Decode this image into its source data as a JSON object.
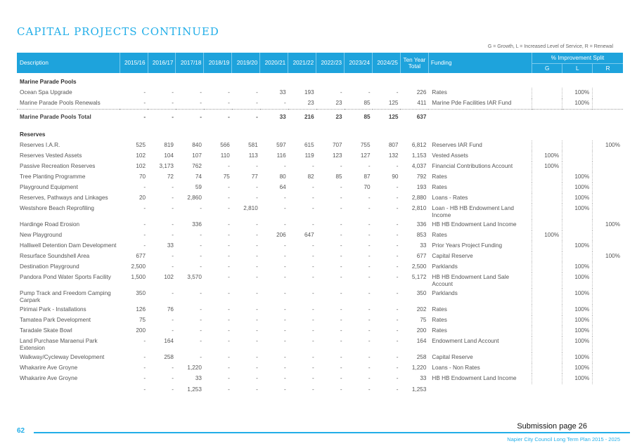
{
  "page": {
    "title": "CAPITAL PROJECTS CONTINUED",
    "legend": "G = Growth, L = Increased Level of Service, R = Renewal",
    "page_number": "62",
    "submission": "Submission page 26",
    "footer_brand": "Napier City Council Long Term Plan 2015 - 2025"
  },
  "headers": {
    "description": "Description",
    "years": [
      "2015/16",
      "2016/17",
      "2017/18",
      "2018/19",
      "2019/20",
      "2020/21",
      "2021/22",
      "2022/23",
      "2023/24",
      "2024/25"
    ],
    "ten_year_total": "Ten Year Total",
    "funding": "Funding",
    "improvement_split": "% Improvement Split",
    "split_cols": [
      "G",
      "L",
      "R"
    ]
  },
  "rows": [
    {
      "type": "group",
      "description": "Marine Parade Pools"
    },
    {
      "type": "item",
      "description": "Ocean Spa Upgrade",
      "values": [
        "-",
        "-",
        "-",
        "-",
        "-",
        "33",
        "193",
        "-",
        "-",
        "-"
      ],
      "total": "226",
      "funding": "Rates",
      "g": "",
      "l": "100%",
      "r": ""
    },
    {
      "type": "item",
      "description": "Marine Parade Pools Renewals",
      "values": [
        "-",
        "-",
        "-",
        "-",
        "-",
        "-",
        "23",
        "23",
        "85",
        "125"
      ],
      "total": "411",
      "funding": "Marine Pde Facilities IAR Fund",
      "g": "",
      "l": "100%",
      "r": "",
      "extra": "155"
    },
    {
      "type": "total",
      "description": "Marine Parade Pools Total",
      "values": [
        "-",
        "-",
        "-",
        "-",
        "-",
        "33",
        "216",
        "23",
        "85",
        "125"
      ],
      "total": "637",
      "extra": "155"
    },
    {
      "type": "group",
      "description": "Reserves"
    },
    {
      "type": "item",
      "description": "Reserves I.A.R.",
      "values": [
        "525",
        "819",
        "840",
        "566",
        "581",
        "597",
        "615",
        "707",
        "755",
        "807"
      ],
      "total": "6,812",
      "funding": "Reserves IAR Fund",
      "g": "",
      "l": "",
      "r": "100%"
    },
    {
      "type": "item",
      "description": "Reserves Vested Assets",
      "values": [
        "102",
        "104",
        "107",
        "110",
        "113",
        "116",
        "119",
        "123",
        "127",
        "132"
      ],
      "total": "1,153",
      "funding": "Vested Assets",
      "g": "100%",
      "l": "",
      "r": ""
    },
    {
      "type": "item",
      "description": "Passive Recreation Reserves",
      "values": [
        "102",
        "3,173",
        "762",
        "-",
        "-",
        "-",
        "-",
        "-",
        "-",
        "-"
      ],
      "total": "4,037",
      "funding": "Financial Contributions Account",
      "g": "100%",
      "l": "",
      "r": ""
    },
    {
      "type": "item",
      "description": "Tree Planting Programme",
      "values": [
        "70",
        "72",
        "74",
        "75",
        "77",
        "80",
        "82",
        "85",
        "87",
        "90"
      ],
      "total": "792",
      "funding": "Rates",
      "g": "",
      "l": "100%",
      "r": ""
    },
    {
      "type": "item",
      "description": "Playground Equipment",
      "values": [
        "-",
        "-",
        "59",
        "-",
        "-",
        "64",
        "-",
        "-",
        "70",
        "-"
      ],
      "total": "193",
      "funding": "Rates",
      "g": "",
      "l": "100%",
      "r": ""
    },
    {
      "type": "item",
      "description": "Reserves, Pathways and Linkages",
      "values": [
        "20",
        "-",
        "2,860",
        "-",
        "-",
        "-",
        "-",
        "-",
        "-",
        "-"
      ],
      "total": "2,880",
      "funding": "Loans - Rates",
      "g": "",
      "l": "100%",
      "r": ""
    },
    {
      "type": "item",
      "description": "Westshore Beach Reprofiling",
      "values": [
        "-",
        "-",
        "-",
        "-",
        "2,810",
        "-",
        "-",
        "-",
        "-",
        "-"
      ],
      "total": "2,810",
      "funding": "Loan - HB HB Endowment Land Income",
      "g": "",
      "l": "100%",
      "r": ""
    },
    {
      "type": "item",
      "description": "Hardinge Road Erosion",
      "values": [
        "-",
        "-",
        "336",
        "-",
        "-",
        "-",
        "-",
        "-",
        "-",
        "-"
      ],
      "total": "336",
      "funding": "HB HB Endowment Land Income",
      "g": "",
      "l": "",
      "r": "100%"
    },
    {
      "type": "item",
      "description": "New Playground",
      "values": [
        "-",
        "-",
        "-",
        "-",
        "-",
        "206",
        "647",
        "-",
        "-",
        "-"
      ],
      "total": "853",
      "funding": "Rates",
      "g": "100%",
      "l": "",
      "r": ""
    },
    {
      "type": "item",
      "description": "Halliwell Detention Dam Development",
      "values": [
        "-",
        "33",
        "-",
        "-",
        "-",
        "-",
        "-",
        "-",
        "-",
        "-"
      ],
      "total": "33",
      "funding": "Prior Years Project Funding",
      "g": "",
      "l": "100%",
      "r": ""
    },
    {
      "type": "item",
      "description": "Resurface Soundshell Area",
      "values": [
        "677",
        "-",
        "-",
        "-",
        "-",
        "-",
        "-",
        "-",
        "-",
        "-"
      ],
      "total": "677",
      "funding": "Capital Reserve",
      "g": "",
      "l": "",
      "r": "100%"
    },
    {
      "type": "item",
      "description": "Destination Playground",
      "values": [
        "2,500",
        "-",
        "-",
        "-",
        "-",
        "-",
        "-",
        "-",
        "-",
        "-"
      ],
      "total": "2,500",
      "funding": "Parklands",
      "g": "",
      "l": "100%",
      "r": ""
    },
    {
      "type": "item",
      "description": "Pandora Pond Water Sports Facility",
      "values": [
        "1,500",
        "102",
        "3,570",
        "-",
        "-",
        "-",
        "-",
        "-",
        "-",
        "-"
      ],
      "total": "5,172",
      "funding": "HB HB Endowment Land Sale Account",
      "g": "",
      "l": "100%",
      "r": ""
    },
    {
      "type": "item",
      "description": "Pump Track and Freedom Camping Carpark",
      "values": [
        "350",
        "-",
        "-",
        "-",
        "-",
        "-",
        "-",
        "-",
        "-",
        "-"
      ],
      "total": "350",
      "funding": "Parklands",
      "g": "",
      "l": "100%",
      "r": ""
    },
    {
      "type": "item",
      "description": "Pirimai Park - Installations",
      "values": [
        "126",
        "76",
        "-",
        "-",
        "-",
        "-",
        "-",
        "-",
        "-",
        "-"
      ],
      "total": "202",
      "funding": "Rates",
      "g": "",
      "l": "100%",
      "r": ""
    },
    {
      "type": "item",
      "description": "Tamatea Park Development",
      "values": [
        "75",
        "-",
        "-",
        "-",
        "-",
        "-",
        "-",
        "-",
        "-",
        "-"
      ],
      "total": "75",
      "funding": "Rates",
      "g": "",
      "l": "100%",
      "r": ""
    },
    {
      "type": "item",
      "description": "Taradale Skate Bowl",
      "values": [
        "200",
        "-",
        "-",
        "-",
        "-",
        "-",
        "-",
        "-",
        "-",
        "-"
      ],
      "total": "200",
      "funding": "Rates",
      "g": "",
      "l": "100%",
      "r": ""
    },
    {
      "type": "item",
      "description": "Land Purchase Maraenui Park Extension",
      "values": [
        "-",
        "164",
        "-",
        "-",
        "-",
        "-",
        "-",
        "-",
        "-",
        "-"
      ],
      "total": "164",
      "funding": "Endowment Land Account",
      "g": "",
      "l": "100%",
      "r": ""
    },
    {
      "type": "item",
      "description": "Walkway/Cycleway Development",
      "values": [
        "-",
        "258",
        "-",
        "-",
        "-",
        "-",
        "-",
        "-",
        "-",
        "-"
      ],
      "total": "258",
      "funding": "Capital Reserve",
      "g": "",
      "l": "100%",
      "r": ""
    },
    {
      "type": "item",
      "description": "Whakarire Ave Groyne",
      "values": [
        "-",
        "-",
        "1,220",
        "-",
        "-",
        "-",
        "-",
        "-",
        "-",
        "-"
      ],
      "total": "1,220",
      "funding": "Loans - Non Rates",
      "g": "",
      "l": "100%",
      "r": ""
    },
    {
      "type": "item",
      "description": "Whakarire Ave Groyne",
      "values": [
        "-",
        "-",
        "33",
        "-",
        "-",
        "-",
        "-",
        "-",
        "-",
        "-"
      ],
      "total": "33",
      "funding": "HB HB Endowment Land Income",
      "g": "",
      "l": "100%",
      "r": ""
    },
    {
      "type": "subtotal",
      "description": "",
      "values": [
        "-",
        "-",
        "1,253",
        "-",
        "-",
        "-",
        "-",
        "-",
        "-",
        "-"
      ],
      "total": "1,253"
    }
  ]
}
